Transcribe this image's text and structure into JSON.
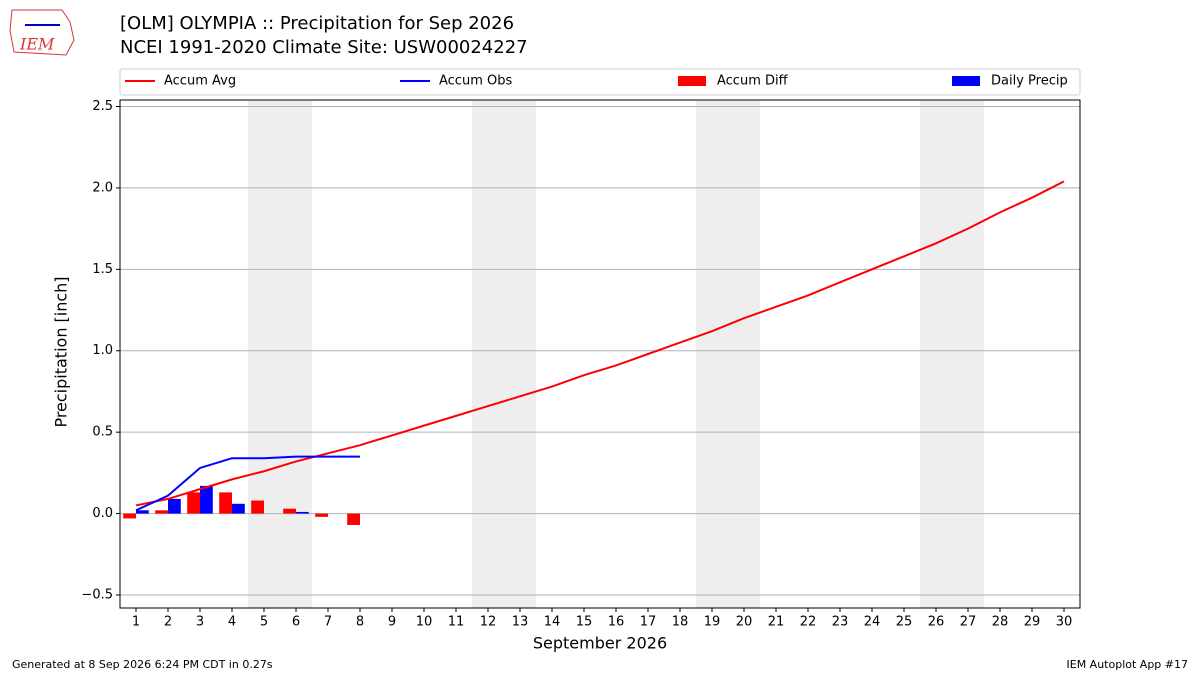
{
  "logo_text": "IEM",
  "chart_data": {
    "type": "bar_line",
    "title": "[OLM] OLYMPIA :: Precipitation for Sep 2026",
    "subtitle": "NCEI 1991-2020 Climate Site: USW00024227",
    "ylabel": "Precipitation [inch]",
    "xlabel": "September 2026",
    "x": [
      1,
      2,
      3,
      4,
      5,
      6,
      7,
      8,
      9,
      10,
      11,
      12,
      13,
      14,
      15,
      16,
      17,
      18,
      19,
      20,
      21,
      22,
      23,
      24,
      25,
      26,
      27,
      28,
      29,
      30
    ],
    "xlim": [
      0.5,
      30.5
    ],
    "xticks": [
      1,
      2,
      3,
      4,
      5,
      6,
      7,
      8,
      9,
      10,
      11,
      12,
      13,
      14,
      15,
      16,
      17,
      18,
      19,
      20,
      21,
      22,
      23,
      24,
      25,
      26,
      27,
      28,
      29,
      30
    ],
    "ylim": [
      -0.58,
      2.54
    ],
    "yticks": [
      {
        "value": -0.5,
        "label": "−0.5"
      },
      {
        "value": 0,
        "label": "0.0"
      },
      0.5,
      {
        "value": 1,
        "label": "1.0"
      },
      1.5,
      {
        "value": 2,
        "label": "2.0"
      },
      2.5
    ],
    "grid": true,
    "legend": "top",
    "shaded_days": [
      5,
      6,
      12,
      13,
      19,
      20,
      26,
      27
    ],
    "series": [
      {
        "name": "Accum Avg",
        "kind": "line",
        "color": "#ff0000",
        "values": [
          0.05,
          0.09,
          0.15,
          0.21,
          0.26,
          0.32,
          0.37,
          0.42,
          0.48,
          0.54,
          0.6,
          0.66,
          0.72,
          0.78,
          0.85,
          0.91,
          0.98,
          1.05,
          1.12,
          1.2,
          1.27,
          1.34,
          1.42,
          1.5,
          1.58,
          1.66,
          1.75,
          1.85,
          1.94,
          2.04
        ]
      },
      {
        "name": "Accum Obs",
        "kind": "line",
        "color": "#0000ff",
        "values": [
          0.02,
          0.11,
          0.28,
          0.34,
          0.34,
          0.35,
          0.35,
          0.35,
          null,
          null,
          null,
          null,
          null,
          null,
          null,
          null,
          null,
          null,
          null,
          null,
          null,
          null,
          null,
          null,
          null,
          null,
          null,
          null,
          null,
          null
        ]
      },
      {
        "name": "Accum Diff",
        "kind": "bar",
        "color": "#ff0000",
        "values": [
          -0.03,
          0.02,
          0.13,
          0.13,
          0.08,
          0.03,
          -0.02,
          -0.07,
          null,
          null,
          null,
          null,
          null,
          null,
          null,
          null,
          null,
          null,
          null,
          null,
          null,
          null,
          null,
          null,
          null,
          null,
          null,
          null,
          null,
          null
        ]
      },
      {
        "name": "Daily Precip",
        "kind": "bar",
        "color": "#0000ff",
        "values": [
          0.02,
          0.09,
          0.17,
          0.06,
          0,
          0.01,
          0,
          0,
          null,
          null,
          null,
          null,
          null,
          null,
          null,
          null,
          null,
          null,
          null,
          null,
          null,
          null,
          null,
          null,
          null,
          null,
          null,
          null,
          null,
          null
        ]
      }
    ],
    "footer_left": "Generated at 8 Sep 2026 6:24 PM CDT in 0.27s",
    "footer_right": "IEM Autoplot App #17"
  }
}
